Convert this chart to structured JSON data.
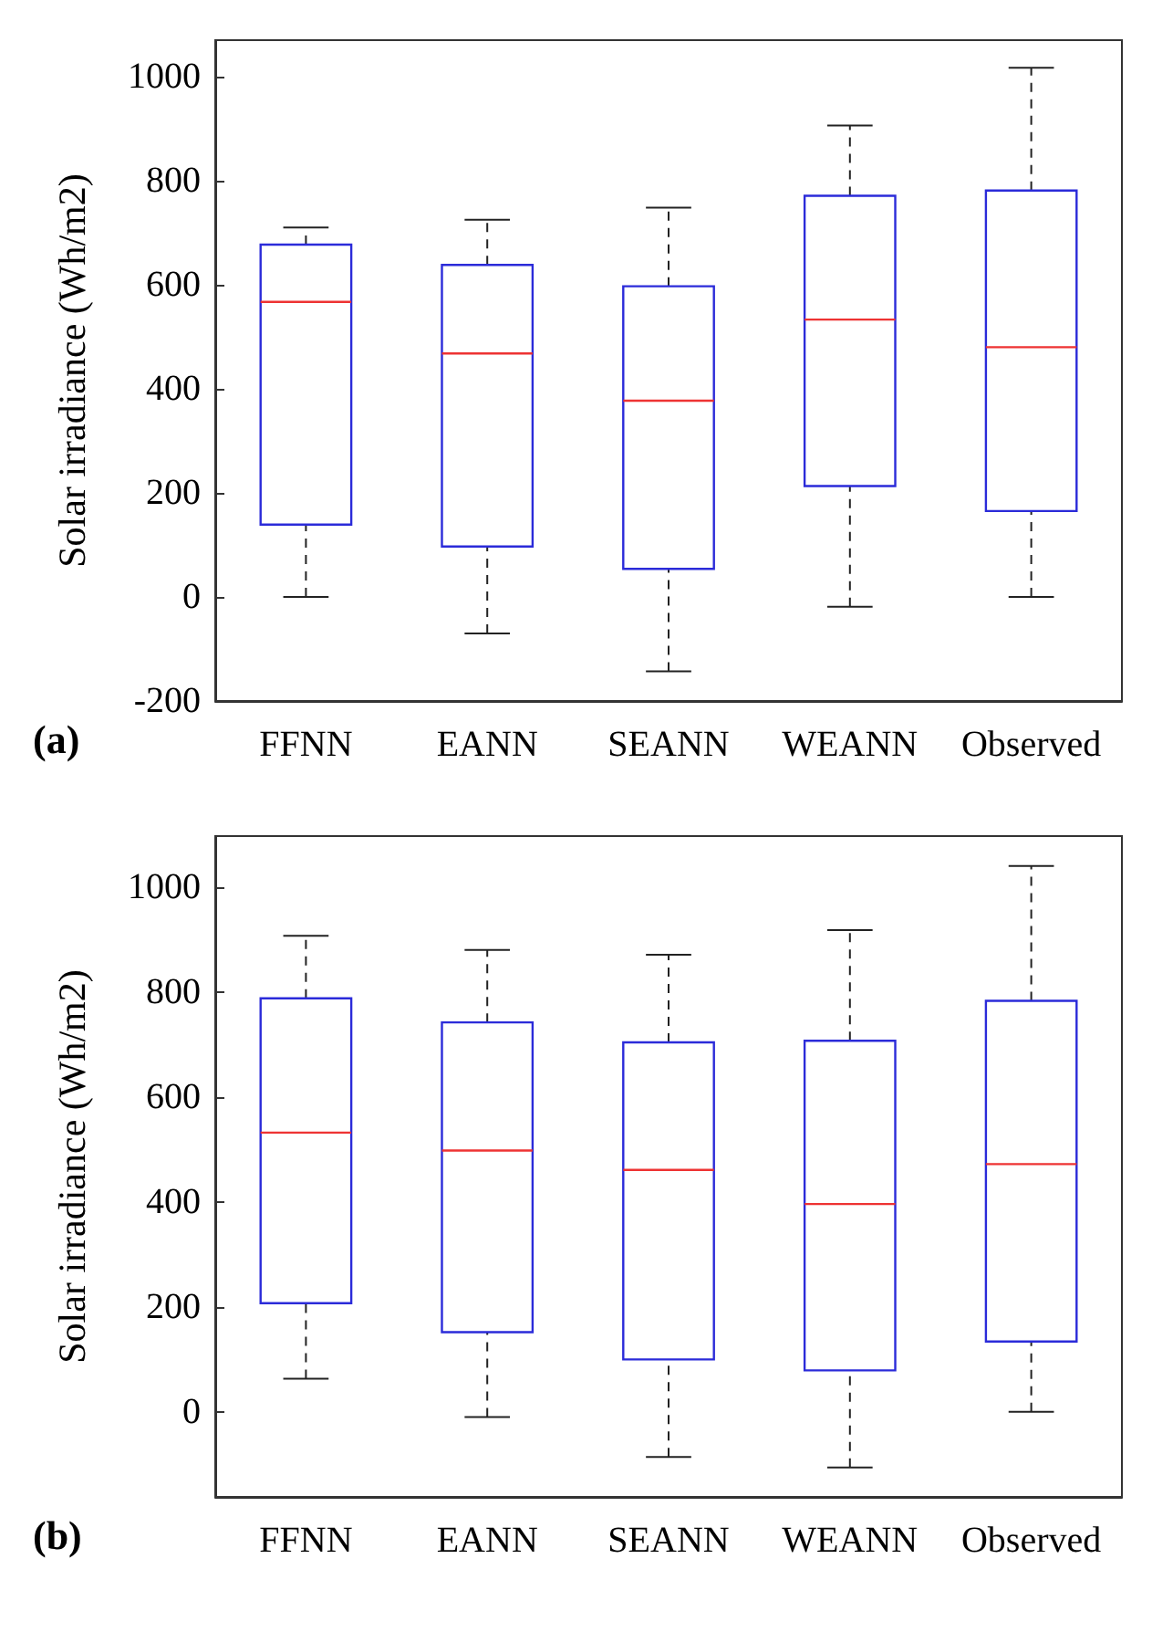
{
  "chart_data": [
    {
      "type": "box",
      "ylabel": "Solar irradiance (Wh/m2)",
      "categories": [
        "FFNN",
        "EANN",
        "SEANN",
        "WEANN",
        "Observed"
      ],
      "color": "#2b2bd9",
      "ylim": [
        -200,
        1070
      ],
      "yticks": [
        -200,
        0,
        200,
        400,
        600,
        800,
        1000
      ],
      "grid": false,
      "annotations": [
        "(a)"
      ],
      "boxes": [
        {
          "low": 0,
          "q1": 139,
          "median": 567,
          "q3": 677,
          "high": 710
        },
        {
          "low": -70,
          "q1": 97,
          "median": 468,
          "q3": 638,
          "high": 725
        },
        {
          "low": -143,
          "q1": 54,
          "median": 377,
          "q3": 597,
          "high": 748
        },
        {
          "low": -19,
          "q1": 213,
          "median": 533,
          "q3": 771,
          "high": 906
        },
        {
          "low": 0,
          "q1": 165,
          "median": 480,
          "q3": 781,
          "high": 1017
        }
      ]
    },
    {
      "type": "box",
      "ylabel": "Solar irradiance (Wh/m2)",
      "categories": [
        "FFNN",
        "EANN",
        "SEANN",
        "WEANN",
        "Observed"
      ],
      "color": "#2b2bd9",
      "ylim": [
        -162,
        1097
      ],
      "yticks": [
        0,
        200,
        400,
        600,
        800,
        1000
      ],
      "grid": false,
      "annotations": [
        "(b)"
      ],
      "boxes": [
        {
          "low": 63,
          "q1": 207,
          "median": 532,
          "q3": 788,
          "high": 907
        },
        {
          "low": -10,
          "q1": 152,
          "median": 498,
          "q3": 742,
          "high": 880
        },
        {
          "low": -86,
          "q1": 100,
          "median": 461,
          "q3": 704,
          "high": 871
        },
        {
          "low": -106,
          "q1": 79,
          "median": 396,
          "q3": 707,
          "high": 918
        },
        {
          "low": 0,
          "q1": 134,
          "median": 472,
          "q3": 783,
          "high": 1040
        }
      ]
    }
  ]
}
